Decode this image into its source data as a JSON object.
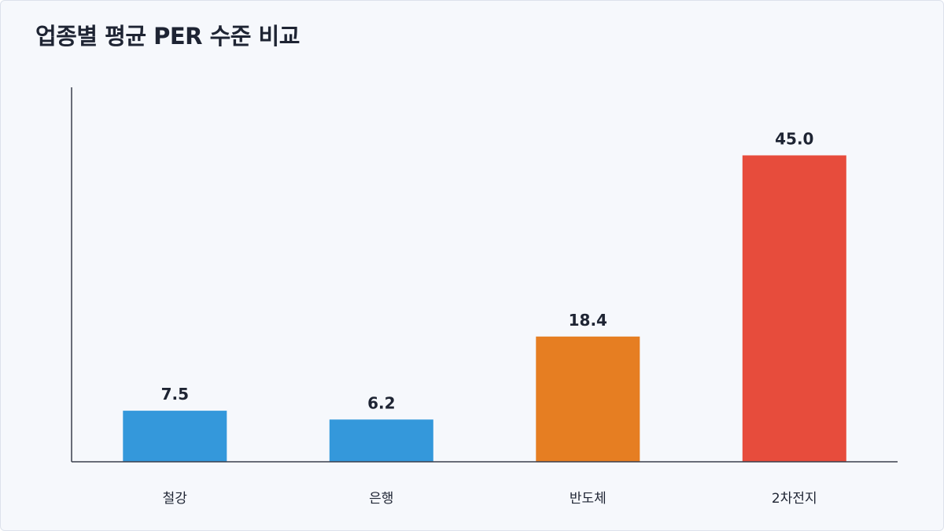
{
  "chart_data": {
    "type": "bar",
    "title": "업종별 평균 PER 수준 비교",
    "xlabel": "",
    "ylabel": "",
    "categories": [
      "철강",
      "은행",
      "반도체",
      "2차전지"
    ],
    "values": [
      7.5,
      6.2,
      18.4,
      45.0
    ],
    "value_labels": [
      "7.5",
      "6.2",
      "18.4",
      "45.0"
    ],
    "colors": [
      "#3498db",
      "#3498db",
      "#e67e22",
      "#e74c3c"
    ],
    "ylim": [
      0,
      55
    ],
    "grid": false,
    "legend": "none"
  }
}
